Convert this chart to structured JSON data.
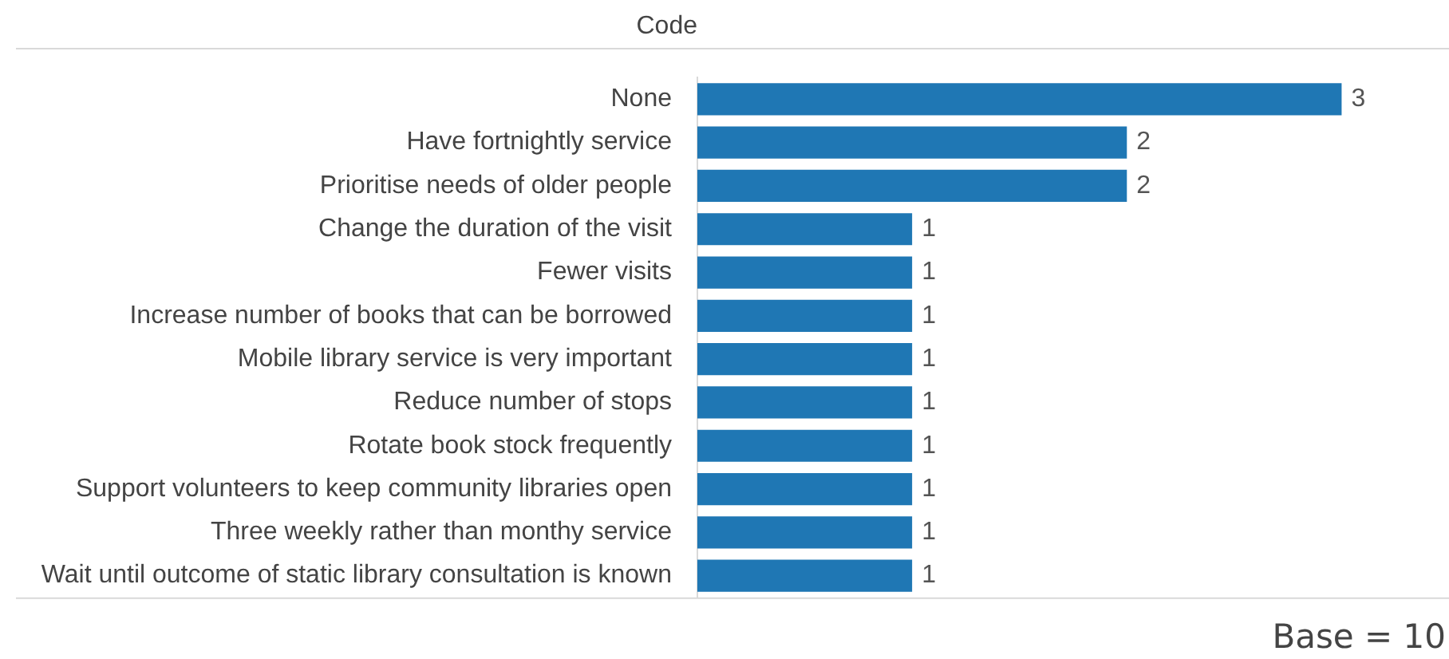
{
  "chart_data": {
    "type": "bar",
    "orientation": "horizontal",
    "ylabel": "Code",
    "categories": [
      "None",
      "Have fortnightly service",
      "Prioritise needs of older people",
      "Change the duration of the visit",
      "Fewer visits",
      "Increase number of books that can be borrowed",
      "Mobile library service is very important",
      "Reduce number of stops",
      "Rotate book stock frequently",
      "Support volunteers to keep community libraries open",
      "Three weekly rather than monthy service",
      "Wait until outcome of static library consultation is known"
    ],
    "values": [
      3,
      2,
      2,
      1,
      1,
      1,
      1,
      1,
      1,
      1,
      1,
      1
    ],
    "color": "#1f77b4",
    "data_labels": true,
    "grid": false,
    "legend": false,
    "tick_labels": "y",
    "annotations": [
      "Base = 10"
    ]
  }
}
